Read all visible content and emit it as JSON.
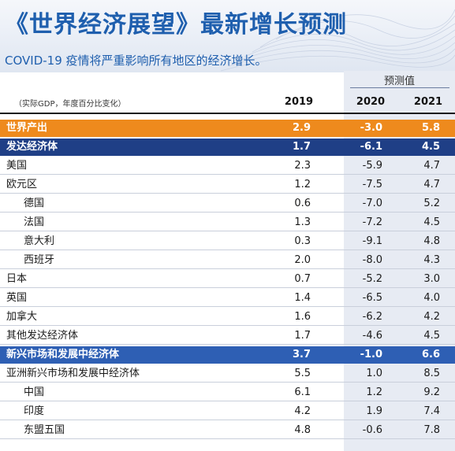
{
  "title": "《世界经济展望》最新增长预测",
  "subtitle": "COVID-19 疫情将严重影响所有地区的经济增长。",
  "projection_label": "预测值",
  "unit_label": "（实际GDP，年度百分比变化）",
  "columns": [
    "2019",
    "2020",
    "2021"
  ],
  "colors": {
    "title": "#1f5fae",
    "world_row": "#ee8a1d",
    "advanced_row": "#1f3f86",
    "emerging_row": "#2e5fb4",
    "projection_band": "#e7ebf3"
  },
  "rows": [
    {
      "label": "世界产出",
      "v2019": "2.9",
      "v2020": "-3.0",
      "v2021": "5.8",
      "style": "orange"
    },
    {
      "label": "发达经济体",
      "v2019": "1.7",
      "v2020": "-6.1",
      "v2021": "4.5",
      "style": "navy"
    },
    {
      "label": "美国",
      "v2019": "2.3",
      "v2020": "-5.9",
      "v2021": "4.7",
      "style": "plain"
    },
    {
      "label": "欧元区",
      "v2019": "1.2",
      "v2020": "-7.5",
      "v2021": "4.7",
      "style": "plain"
    },
    {
      "label": "德国",
      "v2019": "0.6",
      "v2020": "-7.0",
      "v2021": "5.2",
      "style": "indent"
    },
    {
      "label": "法国",
      "v2019": "1.3",
      "v2020": "-7.2",
      "v2021": "4.5",
      "style": "indent"
    },
    {
      "label": "意大利",
      "v2019": "0.3",
      "v2020": "-9.1",
      "v2021": "4.8",
      "style": "indent"
    },
    {
      "label": "西班牙",
      "v2019": "2.0",
      "v2020": "-8.0",
      "v2021": "4.3",
      "style": "indent"
    },
    {
      "label": "日本",
      "v2019": "0.7",
      "v2020": "-5.2",
      "v2021": "3.0",
      "style": "plain"
    },
    {
      "label": "英国",
      "v2019": "1.4",
      "v2020": "-6.5",
      "v2021": "4.0",
      "style": "plain"
    },
    {
      "label": "加拿大",
      "v2019": "1.6",
      "v2020": "-6.2",
      "v2021": "4.2",
      "style": "plain"
    },
    {
      "label": "其他发达经济体",
      "v2019": "1.7",
      "v2020": "-4.6",
      "v2021": "4.5",
      "style": "plain"
    },
    {
      "label": "新兴市场和发展中经济体",
      "v2019": "3.7",
      "v2020": "-1.0",
      "v2021": "6.6",
      "style": "blue"
    },
    {
      "label": "亚洲新兴市场和发展中经济体",
      "v2019": "5.5",
      "v2020": "1.0",
      "v2021": "8.5",
      "style": "plain"
    },
    {
      "label": "中国",
      "v2019": "6.1",
      "v2020": "1.2",
      "v2021": "9.2",
      "style": "indent"
    },
    {
      "label": "印度",
      "v2019": "4.2",
      "v2020": "1.9",
      "v2021": "7.4",
      "style": "indent"
    },
    {
      "label": "东盟五国",
      "v2019": "4.8",
      "v2020": "-0.6",
      "v2021": "7.8",
      "style": "indent"
    }
  ]
}
